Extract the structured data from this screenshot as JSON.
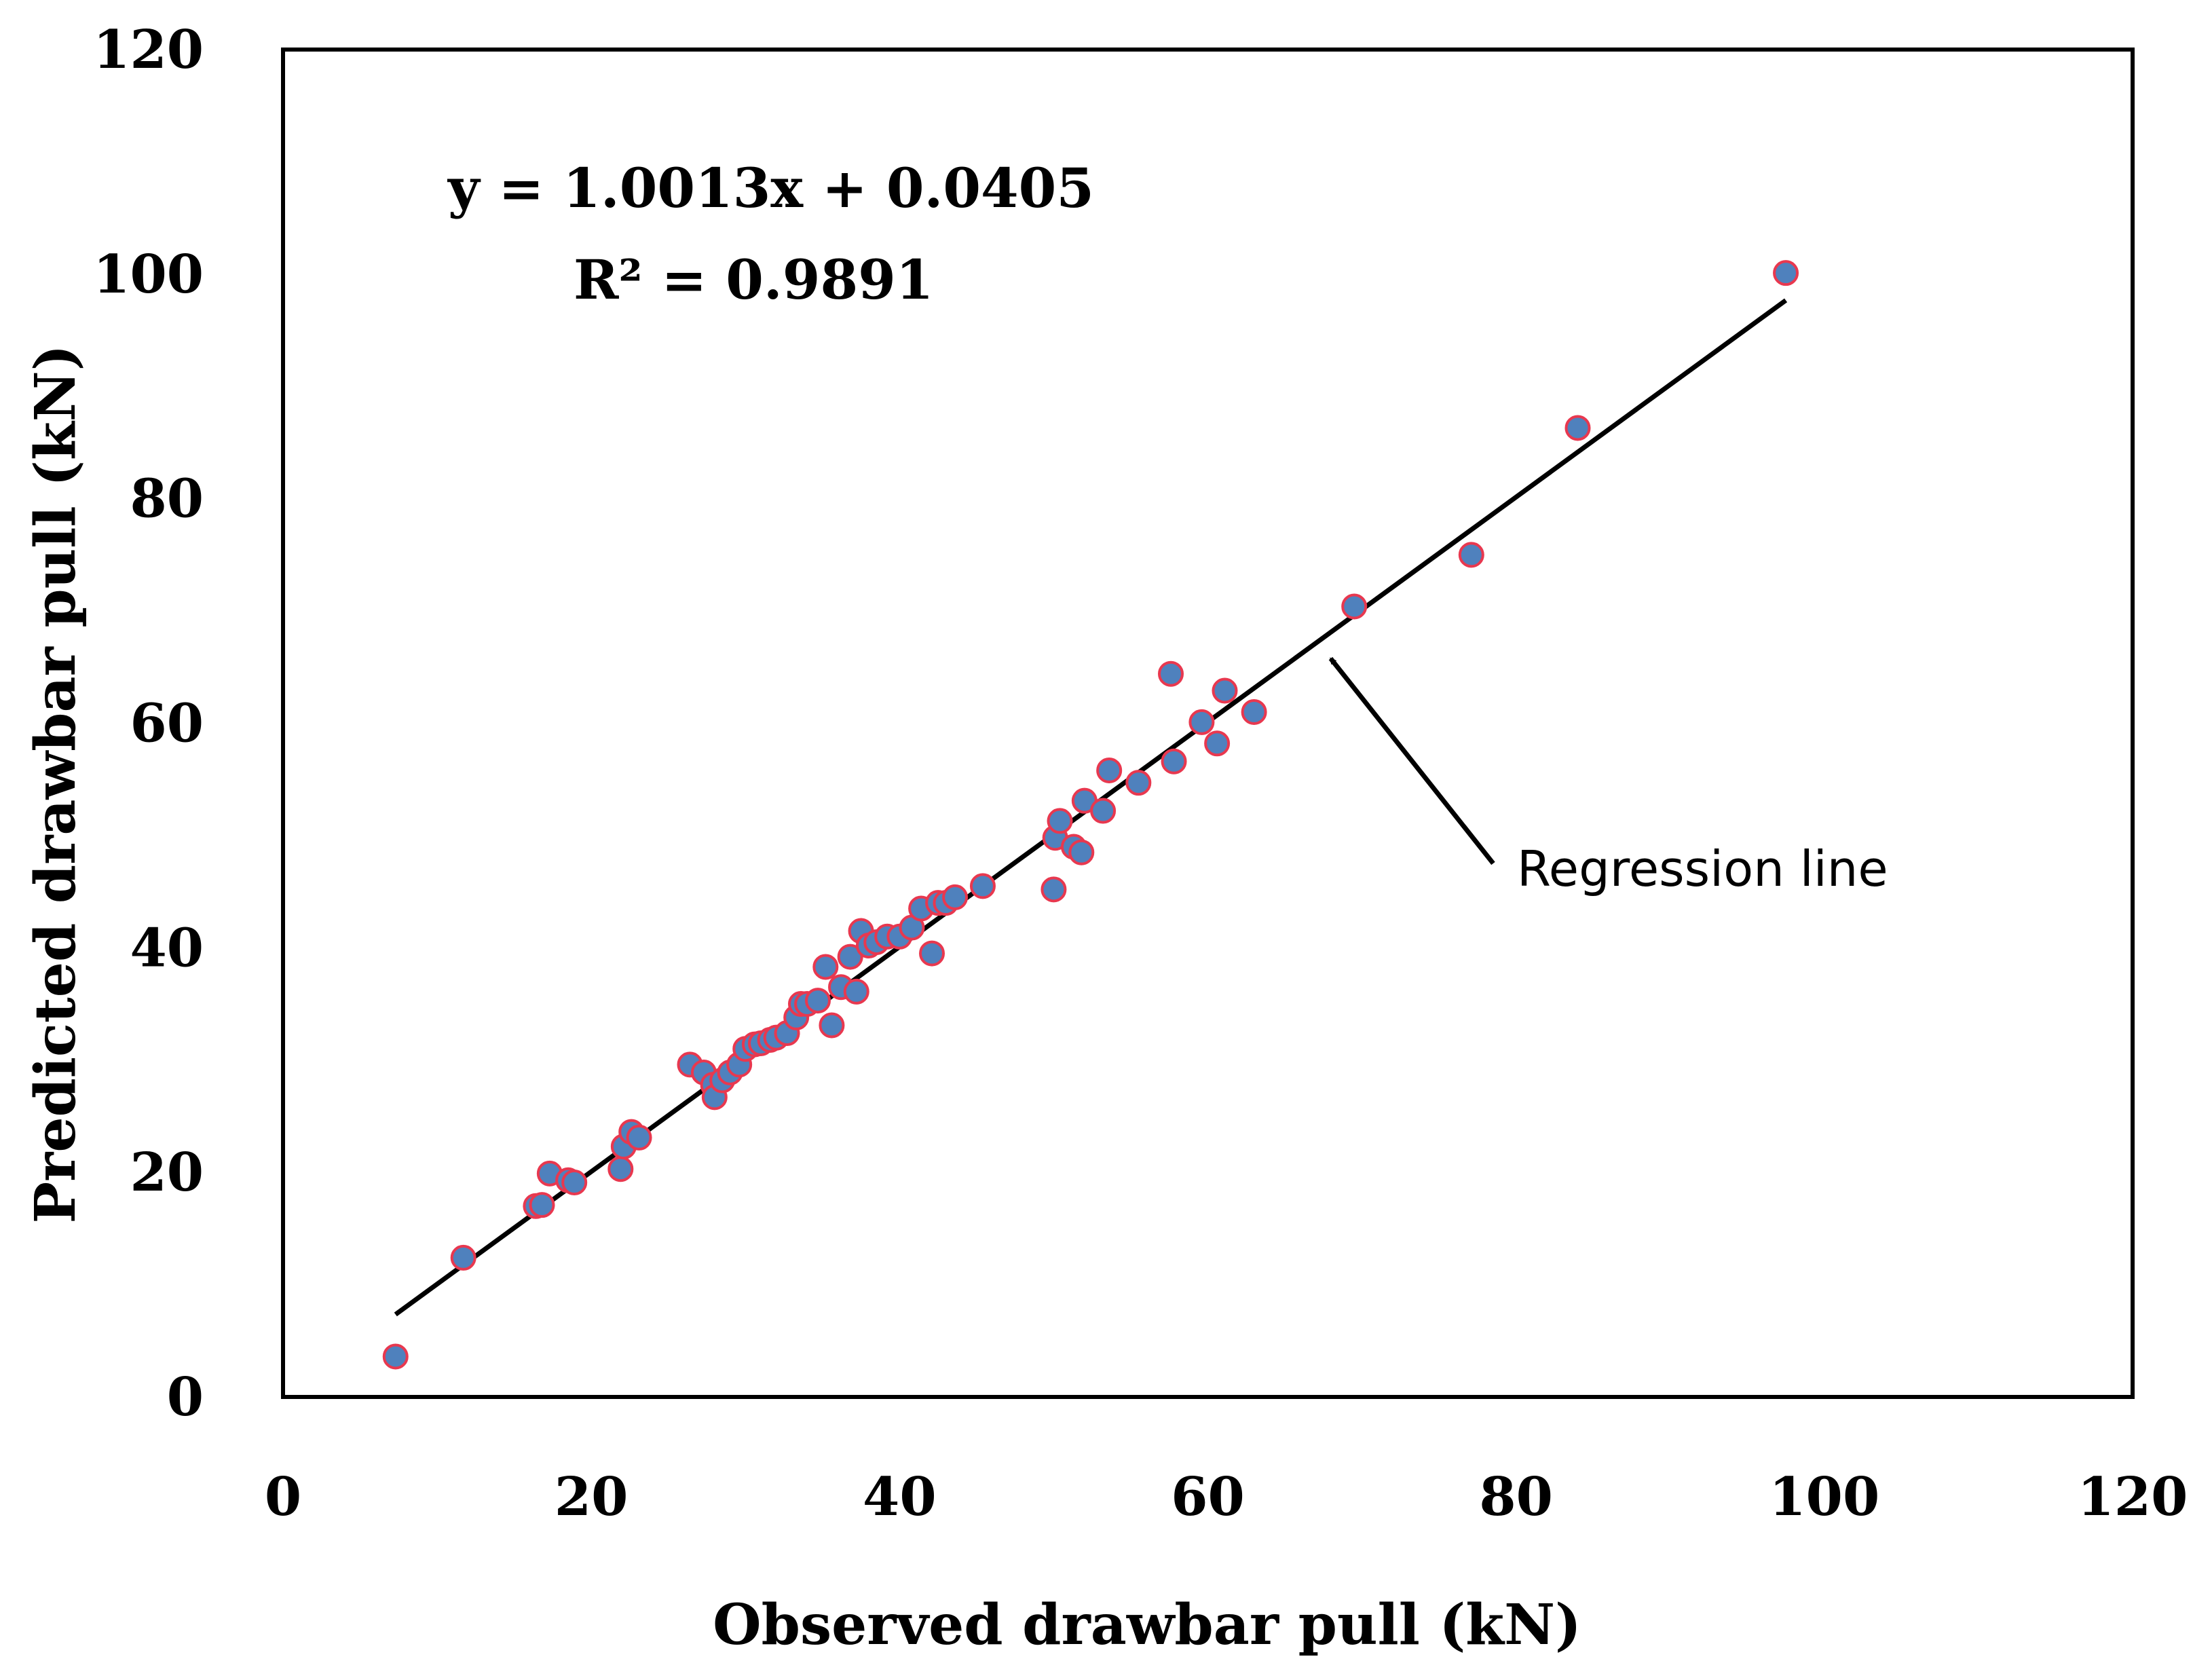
{
  "chart_data": {
    "type": "scatter",
    "xlabel": "Observed drawbar pull (kN)",
    "ylabel": "Predicted drawbar pull (kN)",
    "xlim": [
      0,
      120
    ],
    "ylim": [
      0,
      120
    ],
    "xticks": [
      0,
      20,
      40,
      60,
      80,
      100,
      120
    ],
    "yticks": [
      0,
      20,
      40,
      60,
      80,
      100,
      120
    ],
    "grid": false,
    "marker_fill": "#4f81bd",
    "marker_edge": "#e8384f",
    "line_color": "#000000",
    "series": [
      {
        "points": [
          [
            7.3,
            3.6
          ],
          [
            11.7,
            12.4
          ],
          [
            16.4,
            17.0
          ],
          [
            16.8,
            17.1
          ],
          [
            17.3,
            19.9
          ],
          [
            18.5,
            19.3
          ],
          [
            18.9,
            19.1
          ],
          [
            21.9,
            20.3
          ],
          [
            22.1,
            22.3
          ],
          [
            22.6,
            23.6
          ],
          [
            23.1,
            23.1
          ],
          [
            26.4,
            29.6
          ],
          [
            27.3,
            28.9
          ],
          [
            27.9,
            27.8
          ],
          [
            28.0,
            26.7
          ],
          [
            28.5,
            28.2
          ],
          [
            29.0,
            28.9
          ],
          [
            29.6,
            29.6
          ],
          [
            30.0,
            31.0
          ],
          [
            30.6,
            31.4
          ],
          [
            31.0,
            31.5
          ],
          [
            31.6,
            31.8
          ],
          [
            32.0,
            32.0
          ],
          [
            32.7,
            32.4
          ],
          [
            33.3,
            33.8
          ],
          [
            33.6,
            35.0
          ],
          [
            34.0,
            35.0
          ],
          [
            34.7,
            35.3
          ],
          [
            35.2,
            38.3
          ],
          [
            35.6,
            33.1
          ],
          [
            36.2,
            36.5
          ],
          [
            36.8,
            39.2
          ],
          [
            37.2,
            36.1
          ],
          [
            37.5,
            41.5
          ],
          [
            38.0,
            40.2
          ],
          [
            38.5,
            40.5
          ],
          [
            39.2,
            41.0
          ],
          [
            40.0,
            41.0
          ],
          [
            40.8,
            41.8
          ],
          [
            41.4,
            43.5
          ],
          [
            42.1,
            39.5
          ],
          [
            42.5,
            44.0
          ],
          [
            43.0,
            44.0
          ],
          [
            43.6,
            44.5
          ],
          [
            45.4,
            45.5
          ],
          [
            50.0,
            45.2
          ],
          [
            50.1,
            49.8
          ],
          [
            50.4,
            51.3
          ],
          [
            51.3,
            49.0
          ],
          [
            51.8,
            48.5
          ],
          [
            52.0,
            53.1
          ],
          [
            53.2,
            52.2
          ],
          [
            53.6,
            55.8
          ],
          [
            55.5,
            54.7
          ],
          [
            57.6,
            64.4
          ],
          [
            57.8,
            56.6
          ],
          [
            59.6,
            60.1
          ],
          [
            60.6,
            58.2
          ],
          [
            61.1,
            62.9
          ],
          [
            63.0,
            61.0
          ],
          [
            69.5,
            70.4
          ],
          [
            77.1,
            75.0
          ],
          [
            84.0,
            86.3
          ],
          [
            97.5,
            100.1
          ]
        ]
      }
    ],
    "regression": {
      "slope": 1.0013,
      "intercept": 0.0405,
      "x_range": [
        7.3,
        97.5
      ],
      "equation_text": "y = 1.0013x + 0.0405",
      "r2_text": "R² = 0.9891"
    },
    "annotations": [
      {
        "text": "Regression line",
        "arrow_to": [
          67.0,
          67.1
        ]
      }
    ]
  }
}
